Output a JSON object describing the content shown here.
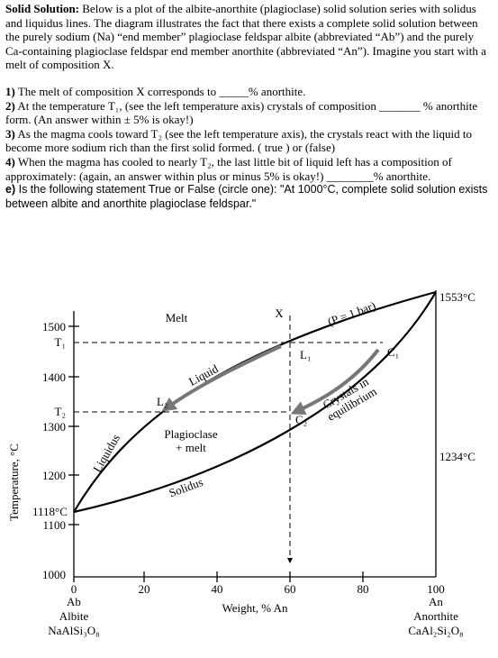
{
  "intro": {
    "label": "Solid Solution:",
    "text": " Below is a plot of the albite-anorthite (plagioclase) solid solution series with solidus and liquidus lines.  The diagram illustrates the fact that there exists a complete solid solution between the purely sodium (Na) “end member” plagioclase feldspar albite (abbreviated “Ab”) and the purely Ca-containing plagioclase feldspar end member anorthite (abbreviated “An”).  Imagine you start with a melt of composition X."
  },
  "questions": [
    {
      "num": "1)",
      "text": " The melt of composition X corresponds to _____% anorthite."
    },
    {
      "num": "2)",
      "text": " At the temperature T₁, (see the left temperature axis) crystals of composition _______ % anorthite form.  (An answer within ± 5% is okay!)"
    },
    {
      "num": "3)",
      "text": " As the magma cools toward T₂ (see the left temperature axis), the crystals react with the liquid to become more sodium rich than the first solid formed.  ( true )   or   (false)"
    },
    {
      "num": "4)",
      "text": " When the magma has cooled to nearly T₂, the last little bit of liquid left has a composition of approximately:  (again, an answer within plus or minus 5% is okay!) ________% anorthite."
    },
    {
      "num": "e)",
      "text": " Is the following statement   True   or   False   (circle one): \"At 1000°C, complete solid solution exists between albite and anorthite plagioclase feldspar.\""
    }
  ],
  "diagram": {
    "y_axis_label": "Temperature, °C",
    "x_axis_label": "Weight, % An",
    "y_ticks": [
      "1500",
      "1400",
      "1300",
      "1200",
      "1100",
      "1000"
    ],
    "x_ticks": [
      "0",
      "20",
      "40",
      "60",
      "80",
      "100"
    ],
    "t1": "T₁",
    "t2": "T₂",
    "low_temp": "1118°C",
    "high_temp": "1553°C",
    "right_temp": "1234°C",
    "left_end": [
      "Ab",
      "Albite",
      "NaAlSi₃O₈"
    ],
    "right_end": [
      "An",
      "Anorthite",
      "CaAl₂Si₂O₈"
    ],
    "melt": "Melt",
    "x": "X",
    "pressure": "(P = 1 bar)",
    "l1": "L₁",
    "c1": "C₁",
    "l2": "L₂",
    "c2": "C₂",
    "liquid": "Liquid",
    "crystals": [
      "Crystals in",
      "equilibrium"
    ],
    "plagioclase": [
      "Plagioclase",
      "+ melt"
    ],
    "liquidus": "Liquidus",
    "solidus": "Solidus"
  }
}
